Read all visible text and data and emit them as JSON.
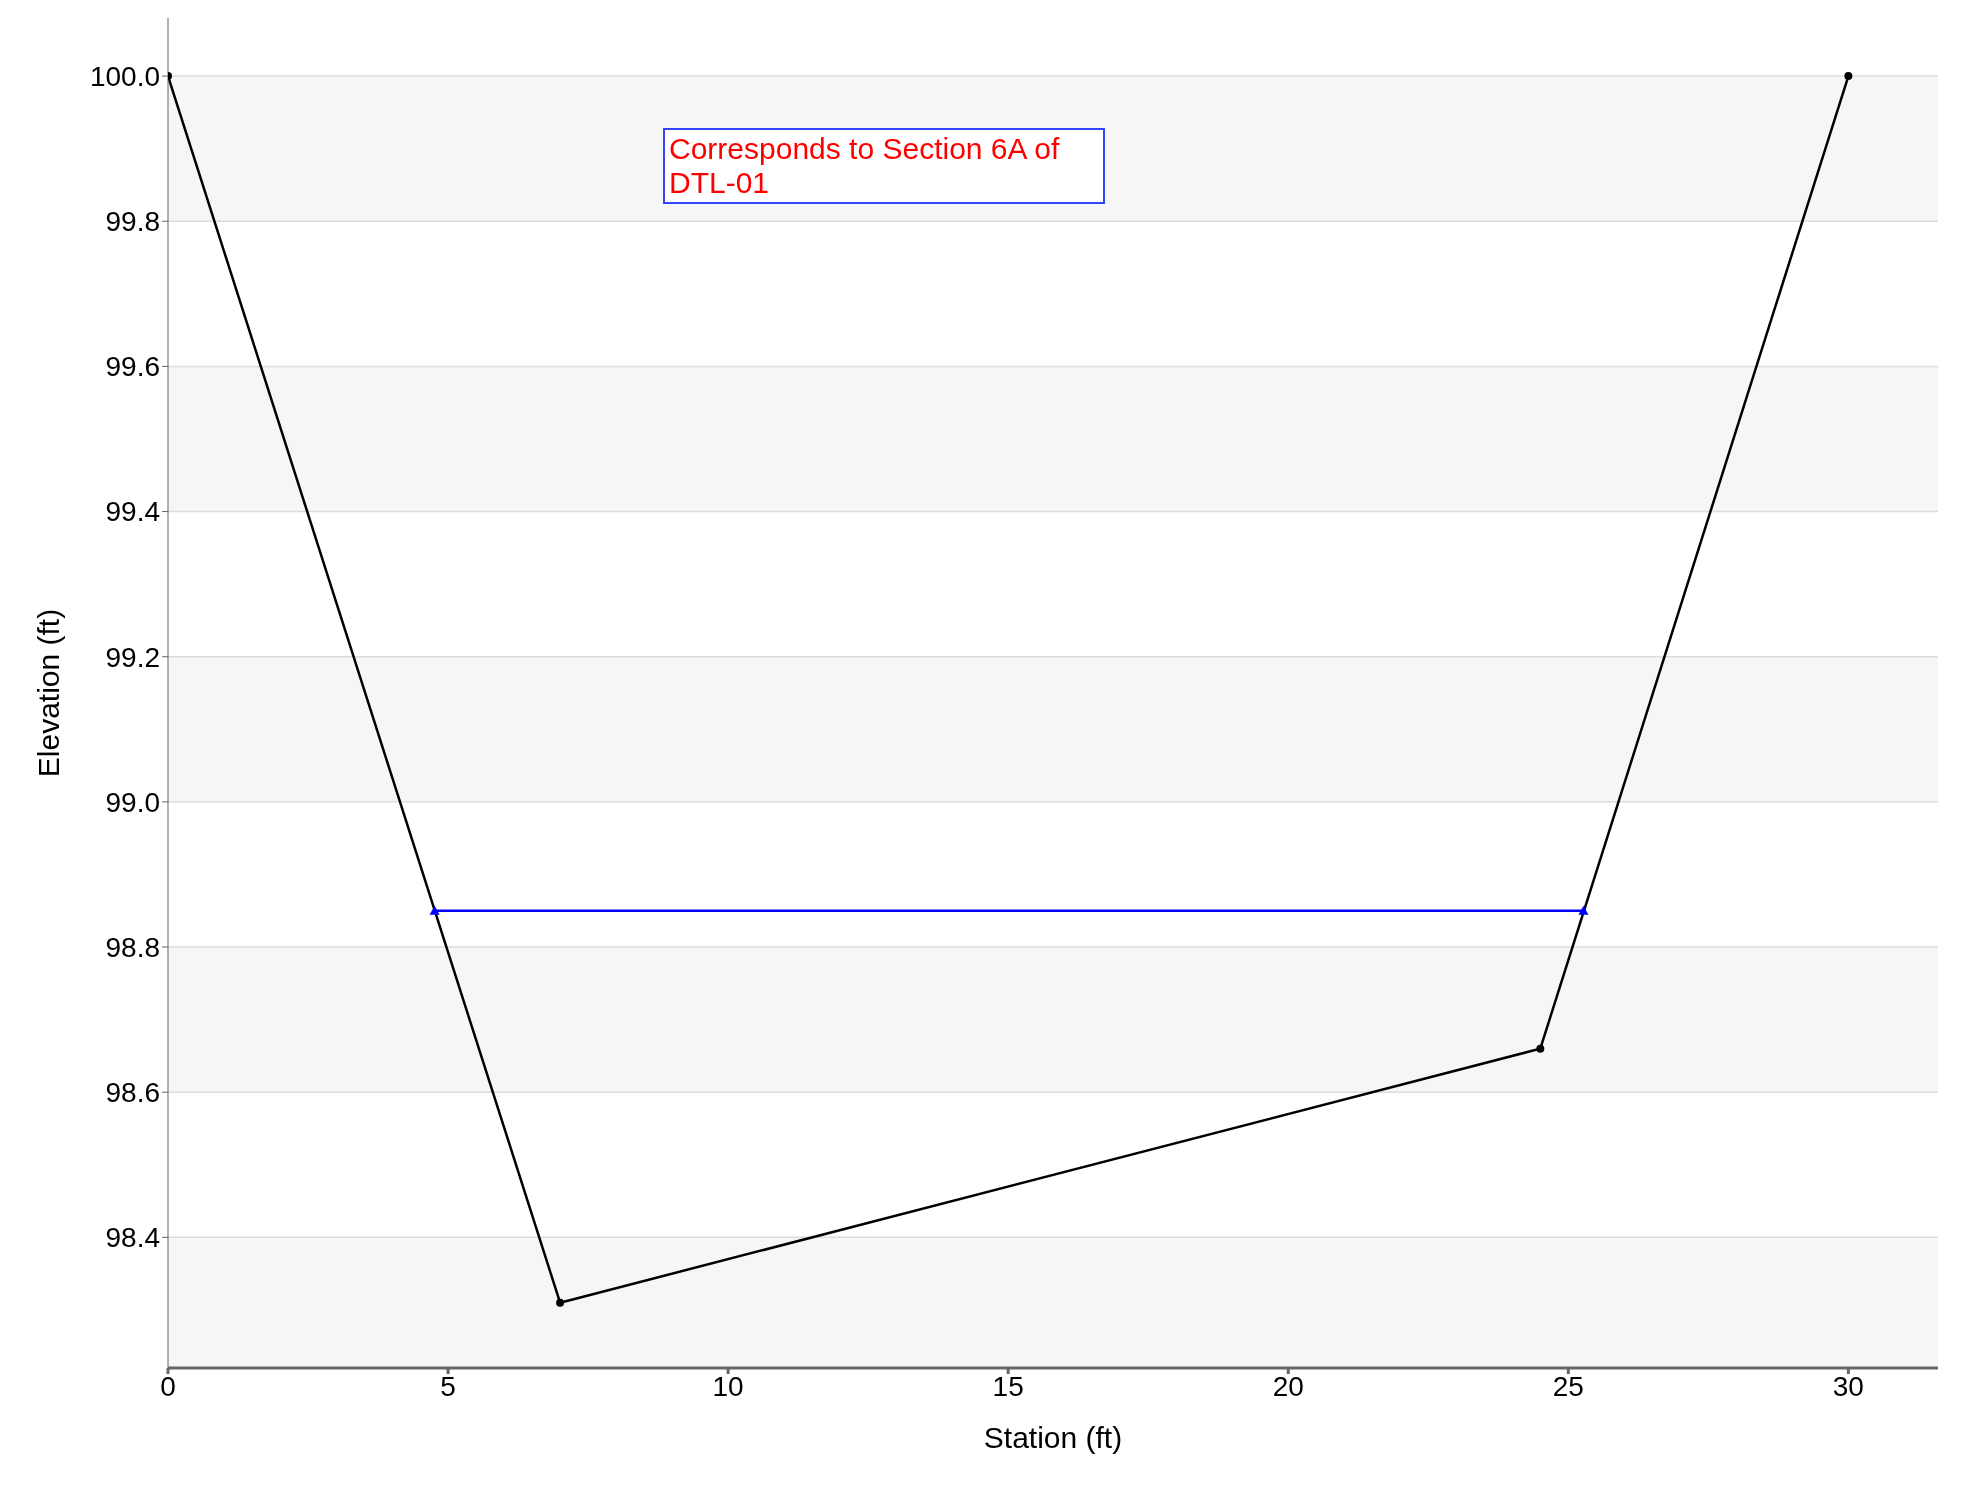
{
  "chart_data": {
    "type": "line",
    "xlabel": "Station (ft)",
    "ylabel": "Elevation (ft)",
    "annotations": [
      "Corresponds to Section 6A of DTL-01"
    ],
    "series": [
      {
        "color": "#000000",
        "marker": "circle",
        "x": [
          0,
          7,
          24.5,
          30
        ],
        "values": [
          100,
          98.31,
          98.66,
          100
        ]
      },
      {
        "color": "#0000ff",
        "marker": "triangle",
        "x": [
          4.76,
          25.27
        ],
        "values": [
          98.85,
          98.85
        ]
      }
    ],
    "xlim": [
      0,
      31.6
    ],
    "xticks": [
      0,
      5,
      10,
      15,
      20,
      25,
      30
    ],
    "ylim": [
      98.22,
      100.08
    ],
    "yticks": [
      {
        "value": 98.4,
        "label": "98.4"
      },
      {
        "value": 98.6,
        "label": "98.6"
      },
      {
        "value": 98.8,
        "label": "98.8"
      },
      {
        "value": 99,
        "label": "99.0"
      },
      {
        "value": 99.2,
        "label": "99.2"
      },
      {
        "value": 99.4,
        "label": "99.4"
      },
      {
        "value": 99.6,
        "label": "99.6"
      },
      {
        "value": 99.8,
        "label": "99.8"
      },
      {
        "value": 100,
        "label": "100.0"
      }
    ],
    "grid": "y",
    "line_style": "solid"
  }
}
